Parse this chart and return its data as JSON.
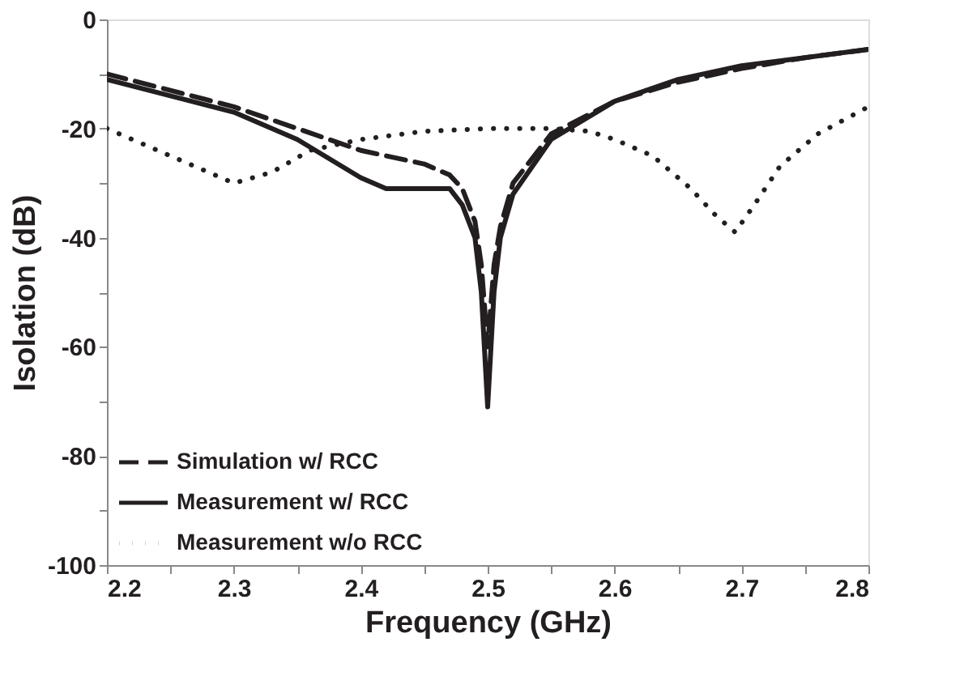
{
  "chart_data": {
    "type": "line",
    "xlabel": "Frequency (GHz)",
    "ylabel": "Isolation (dB)",
    "xlim": [
      2.2,
      2.8
    ],
    "ylim": [
      -100,
      0
    ],
    "xticks": [
      2.2,
      {
        "value": 2.25,
        "label": null
      },
      2.3,
      {
        "value": 2.35,
        "label": null
      },
      2.4,
      {
        "value": 2.45,
        "label": null
      },
      2.5,
      {
        "value": 2.55,
        "label": null
      },
      2.6,
      {
        "value": 2.65,
        "label": null
      },
      2.7,
      {
        "value": 2.75,
        "label": null
      },
      2.8
    ],
    "yticks": [
      -100,
      {
        "value": -90,
        "label": null
      },
      -80,
      {
        "value": -70,
        "label": null
      },
      -60,
      {
        "value": -50,
        "label": null
      },
      -40,
      {
        "value": -30,
        "label": null
      },
      -20,
      {
        "value": -10,
        "label": null
      },
      0
    ],
    "grid": false,
    "legend": "bottom left",
    "marker": "none",
    "series": [
      {
        "name": "Simulation w/ RCC",
        "color": "#231f20",
        "line_style": "dashed",
        "x": [
          2.2,
          2.25,
          2.3,
          2.35,
          2.4,
          2.45,
          2.47,
          2.48,
          2.49,
          2.495,
          2.5,
          2.505,
          2.51,
          2.52,
          2.55,
          2.6,
          2.65,
          2.7,
          2.75,
          2.8
        ],
        "values": [
          -10,
          -13,
          -16,
          -20,
          -24,
          -26.5,
          -28.5,
          -31,
          -37,
          -45,
          -60,
          -45,
          -38,
          -30,
          -21,
          -15,
          -11.5,
          -9,
          -7,
          -5.5
        ]
      },
      {
        "name": "Measurement w/ RCC",
        "color": "#231f20",
        "line_style": "solid",
        "x": [
          2.2,
          2.25,
          2.3,
          2.35,
          2.4,
          2.42,
          2.45,
          2.47,
          2.48,
          2.49,
          2.495,
          2.5,
          2.505,
          2.51,
          2.52,
          2.55,
          2.6,
          2.65,
          2.7,
          2.75,
          2.8
        ],
        "values": [
          -11,
          -14,
          -17,
          -22,
          -29,
          -31,
          -31,
          -31,
          -34,
          -40,
          -50,
          -71,
          -50,
          -40,
          -32,
          -22,
          -15,
          -11,
          -8.5,
          -7,
          -5.5
        ]
      },
      {
        "name": "Measurement w/o RCC",
        "color": "#231f20",
        "line_style": "dotted",
        "x": [
          2.2,
          2.25,
          2.3,
          2.33,
          2.36,
          2.4,
          2.45,
          2.5,
          2.55,
          2.58,
          2.6,
          2.63,
          2.66,
          2.68,
          2.695,
          2.71,
          2.73,
          2.76,
          2.8
        ],
        "values": [
          -20,
          -25,
          -30,
          -28,
          -24,
          -22,
          -20.5,
          -20,
          -20,
          -20.5,
          -22,
          -25,
          -31,
          -36,
          -39,
          -34,
          -27,
          -21,
          -16
        ]
      }
    ]
  }
}
